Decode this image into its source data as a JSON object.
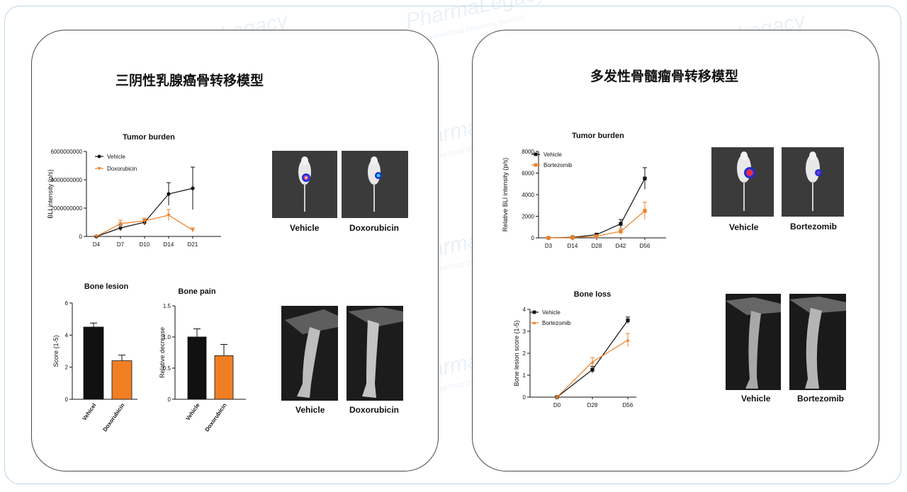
{
  "panels": {
    "left_title": "三阴性乳腺癌骨转移模型",
    "right_title": "多发性骨髓瘤骨转移模型"
  },
  "watermark": {
    "brand": "PharmaLegacy",
    "tagline": "Integrated Drug Discovery Services"
  },
  "images": {
    "bli_left": [
      "Vehicle",
      "Doxorubicin"
    ],
    "xray_left": [
      "Vehicle",
      "Doxorubicin"
    ],
    "bli_right": [
      "Vehicle",
      "Bortezomib"
    ],
    "xray_right": [
      "Vehicle",
      "Bortezomib"
    ]
  },
  "colors": {
    "vehicle": "#111111",
    "treatment": "#f07f23",
    "border_outer": "#bcd6ea"
  },
  "chart_data": [
    {
      "id": "tumor_left",
      "type": "line",
      "title": "Tumor burden",
      "xlabel": "",
      "ylabel": "BLI intensity (p/s)",
      "categories": [
        "D4",
        "D7",
        "D10",
        "D14",
        "D21"
      ],
      "ylim": [
        0,
        6000000000
      ],
      "yticks": [
        0,
        2000000000,
        4000000000,
        6000000000
      ],
      "ytick_labels": [
        "0",
        "2000000000",
        "4000000000",
        "6000000000"
      ],
      "legend": "top-left",
      "series": [
        {
          "name": "Vehicle",
          "color": "#111111",
          "marker": "circle",
          "values": [
            0,
            600000000,
            1000000000,
            3000000000,
            3400000000
          ],
          "errors": [
            50000000,
            200000000,
            200000000,
            800000000,
            1500000000
          ]
        },
        {
          "name": "Doxorubicin",
          "color": "#f07f23",
          "marker": "triangle-down",
          "values": [
            0,
            900000000,
            1100000000,
            1500000000,
            450000000
          ],
          "errors": [
            50000000,
            250000000,
            200000000,
            400000000,
            150000000
          ]
        }
      ]
    },
    {
      "id": "lesion_left",
      "type": "bar",
      "title": "Bone lesion",
      "ylabel": "Score (1-5)",
      "categories": [
        "Vehicel",
        "Doxorubicin"
      ],
      "colors": [
        "#111111",
        "#f07f23"
      ],
      "values": [
        4.5,
        2.4
      ],
      "errors": [
        0.25,
        0.35
      ],
      "ylim": [
        0,
        6
      ],
      "yticks": [
        0,
        2,
        4,
        6
      ],
      "ytick_labels": [
        "0",
        "2",
        "4",
        "6"
      ]
    },
    {
      "id": "pain_left",
      "type": "bar",
      "title": "Bone pain",
      "ylabel": "Relative decrease",
      "categories": [
        "Vehicle",
        "Doxorubicin"
      ],
      "colors": [
        "#111111",
        "#f07f23"
      ],
      "values": [
        1.0,
        0.7
      ],
      "errors": [
        0.13,
        0.18
      ],
      "ylim": [
        0,
        1.5
      ],
      "yticks": [
        0,
        0.5,
        1.0,
        1.5
      ],
      "ytick_labels": [
        "0",
        "0.5",
        "1.0",
        "1.5"
      ]
    },
    {
      "id": "tumor_right",
      "type": "line",
      "title": "Tumor burden",
      "ylabel": "Relative BLI intensity (p/s)",
      "categories": [
        "D3",
        "D14",
        "D28",
        "D42",
        "D56"
      ],
      "ylim": [
        0,
        8000
      ],
      "yticks": [
        0,
        2000,
        4000,
        6000,
        8000
      ],
      "ytick_labels": [
        "0",
        "2000",
        "4000",
        "6000",
        "8000"
      ],
      "legend": "top-left",
      "series": [
        {
          "name": "Vehicle",
          "color": "#111111",
          "marker": "square",
          "values": [
            0,
            50,
            300,
            1300,
            5500
          ],
          "errors": [
            30,
            40,
            100,
            400,
            1000
          ]
        },
        {
          "name": "Bortezomib",
          "color": "#f07f23",
          "marker": "square",
          "values": [
            0,
            20,
            150,
            600,
            2500
          ],
          "errors": [
            20,
            30,
            80,
            250,
            800
          ]
        }
      ]
    },
    {
      "id": "loss_right",
      "type": "line",
      "title": "Bone loss",
      "ylabel": "Bone lesion score (1-5)",
      "categories": [
        "D0",
        "D28",
        "D56"
      ],
      "ylim": [
        0,
        4
      ],
      "yticks": [
        0,
        1,
        2,
        3,
        4
      ],
      "ytick_labels": [
        "0",
        "1",
        "2",
        "3",
        "4"
      ],
      "legend": "top-left",
      "series": [
        {
          "name": "Vehicle",
          "color": "#111111",
          "marker": "square",
          "values": [
            0,
            1.25,
            3.5
          ],
          "errors": [
            0.03,
            0.15,
            0.15
          ]
        },
        {
          "name": "Bortezomib",
          "color": "#f07f23",
          "marker": "triangle-up",
          "values": [
            0,
            1.6,
            2.6
          ],
          "errors": [
            0.03,
            0.2,
            0.3
          ]
        }
      ]
    }
  ]
}
